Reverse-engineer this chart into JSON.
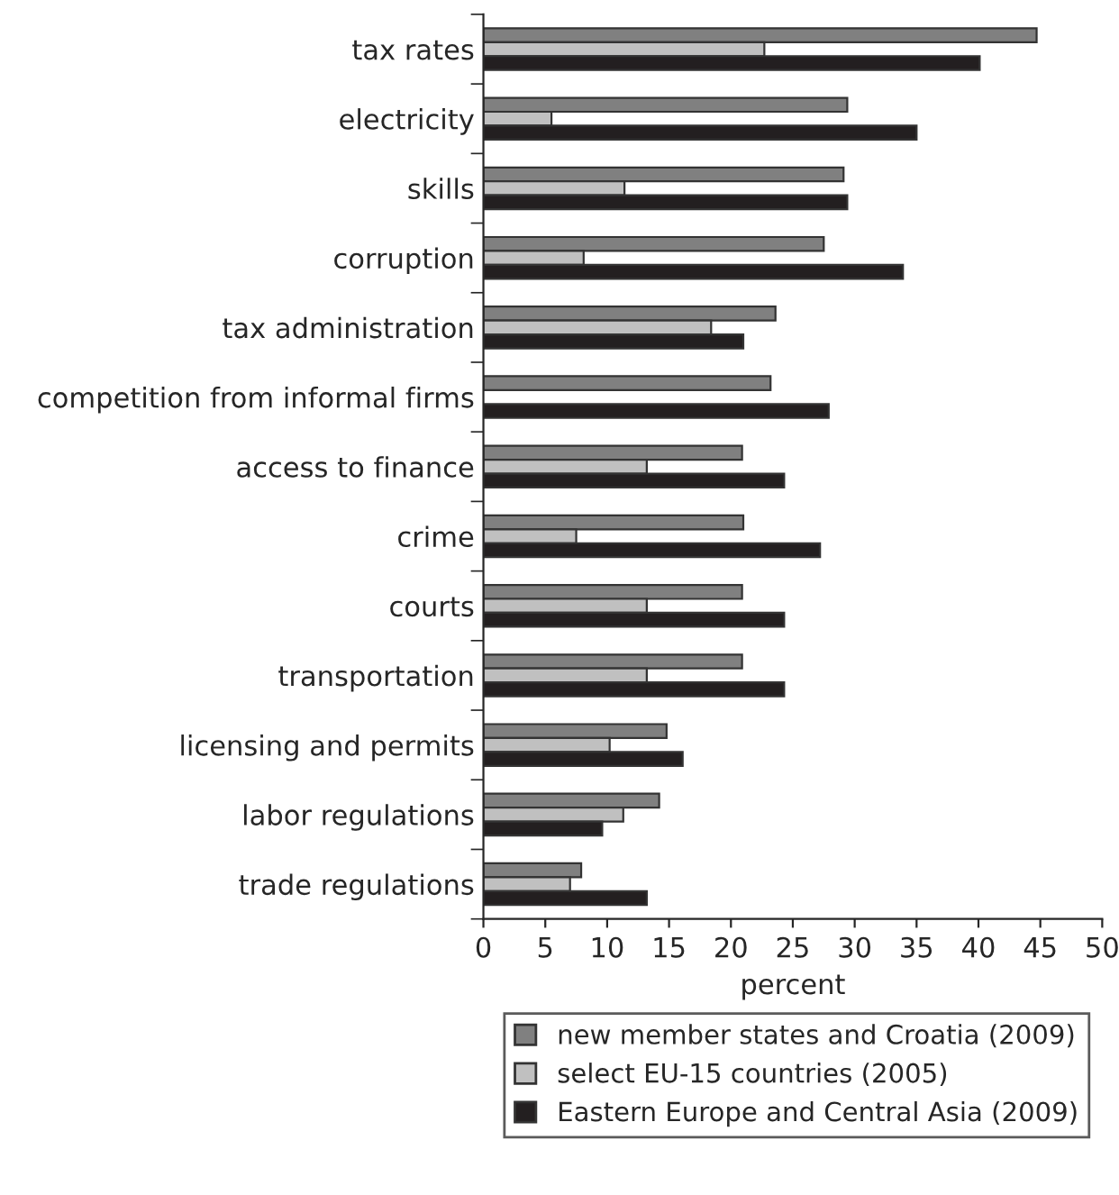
{
  "chart_data": {
    "type": "bar",
    "orientation": "horizontal",
    "xlabel": "percent",
    "categories": [
      "tax rates",
      "electricity",
      "skills",
      "corruption",
      "tax administration",
      "competition from informal firms",
      "access to finance",
      "crime",
      "courts",
      "transportation",
      "licensing and permits",
      "labor regulations",
      "trade regulations"
    ],
    "series": [
      {
        "name": "new member states and Croatia (2009)",
        "color": "#808080",
        "values": [
          44.7,
          29.4,
          29.1,
          27.5,
          23.6,
          23.2,
          20.9,
          21.0,
          20.9,
          20.9,
          14.8,
          14.2,
          7.9
        ]
      },
      {
        "name": "select EU-15 countries (2005)",
        "color": "#c0c0c0",
        "values": [
          22.7,
          5.5,
          11.4,
          8.1,
          18.4,
          null,
          13.2,
          7.5,
          13.2,
          13.2,
          10.2,
          11.3,
          7.0
        ]
      },
      {
        "name": "Eastern Europe and Central Asia (2009)",
        "color": "#231f20",
        "values": [
          40.1,
          35.0,
          29.4,
          33.9,
          21.0,
          27.9,
          24.3,
          27.2,
          24.3,
          24.3,
          16.1,
          9.6,
          13.2
        ]
      }
    ],
    "xlim": [
      0,
      50
    ],
    "xticks": [
      0,
      5,
      10,
      15,
      20,
      25,
      30,
      35,
      40,
      45,
      50
    ],
    "legend": "bottom"
  }
}
